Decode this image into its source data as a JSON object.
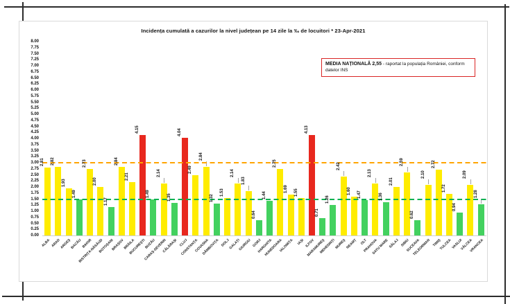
{
  "legend": {
    "title_bold": "MEDIA NAȚIONALĂ  2,55",
    "text": " - raportat la populația României, conform datelor INS"
  },
  "chart_data": {
    "type": "bar",
    "title": "Incidența cumulată a cazurilor la nivel județean pe 14 zile la ‰ de locuitori *   23-Apr-2021",
    "xlabel": "",
    "ylabel": "",
    "ylim": [
      0,
      8
    ],
    "ytick_step": 0.25,
    "grid": false,
    "legend_position": "top-right",
    "national_average": "2,55",
    "reference_lines": [
      {
        "name": "red-threshold",
        "value": 3.0,
        "color": "#ffa400",
        "style": "dashed"
      },
      {
        "name": "green-threshold",
        "value": 1.5,
        "color": "#00b050",
        "style": "dashed"
      }
    ],
    "palette": {
      "yellow": "#ffec00",
      "green": "#43d15f",
      "red": "#e8281e"
    },
    "bars": [
      {
        "name": "ALBA",
        "value": 2.81,
        "color": "yellow",
        "leader": false
      },
      {
        "name": "ARAD",
        "value": 2.82,
        "color": "yellow",
        "leader": false
      },
      {
        "name": "ARGEȘ",
        "value": 1.93,
        "color": "yellow",
        "leader": false
      },
      {
        "name": "BACĂU",
        "value": 1.49,
        "color": "green",
        "leader": false
      },
      {
        "name": "BIHOR",
        "value": 2.73,
        "color": "yellow",
        "leader": false
      },
      {
        "name": "BISTRIȚA-NĂSĂUD",
        "value": 2.0,
        "color": "yellow",
        "leader": false
      },
      {
        "name": "BOTOȘANI",
        "value": 1.17,
        "color": "green",
        "leader": false
      },
      {
        "name": "BRAȘOV",
        "value": 2.84,
        "color": "yellow",
        "leader": false
      },
      {
        "name": "BRĂILA",
        "value": 2.21,
        "color": "yellow",
        "leader": false
      },
      {
        "name": "BUCUREȘTI",
        "value": 4.15,
        "color": "red",
        "leader": false
      },
      {
        "name": "BUZĂU",
        "value": 1.49,
        "color": "green",
        "leader": false
      },
      {
        "name": "CARAȘ-SEVERIN",
        "value": 2.14,
        "color": "yellow",
        "leader": true
      },
      {
        "name": "CĂLĂRAȘI",
        "value": 1.35,
        "color": "green",
        "leader": false
      },
      {
        "name": "CLUJ",
        "value": 4.04,
        "color": "red",
        "leader": false
      },
      {
        "name": "CONSTANȚA",
        "value": 2.49,
        "color": "yellow",
        "leader": false
      },
      {
        "name": "COVASNA",
        "value": 2.84,
        "color": "yellow",
        "leader": true
      },
      {
        "name": "DÂMBOVIȚA",
        "value": 1.32,
        "color": "green",
        "leader": false
      },
      {
        "name": "DOLJ",
        "value": 1.53,
        "color": "yellow",
        "leader": false
      },
      {
        "name": "GALAȚI",
        "value": 2.14,
        "color": "yellow",
        "leader": true
      },
      {
        "name": "GIURGIU",
        "value": 1.83,
        "color": "yellow",
        "leader": true
      },
      {
        "name": "GORJ",
        "value": 0.64,
        "color": "green",
        "leader": false
      },
      {
        "name": "HARGHITA",
        "value": 1.44,
        "color": "green",
        "leader": false
      },
      {
        "name": "HUNEDOARA",
        "value": 2.75,
        "color": "yellow",
        "leader": false
      },
      {
        "name": "IALOMIȚA",
        "value": 1.69,
        "color": "yellow",
        "leader": false
      },
      {
        "name": "IAȘI",
        "value": 1.55,
        "color": "yellow",
        "leader": false
      },
      {
        "name": "ILFOV",
        "value": 4.13,
        "color": "red",
        "leader": false
      },
      {
        "name": "MARAMUREȘ",
        "value": 0.71,
        "color": "green",
        "leader": false
      },
      {
        "name": "MEHEDINȚI",
        "value": 1.26,
        "color": "green",
        "leader": false
      },
      {
        "name": "MUREȘ",
        "value": 2.42,
        "color": "yellow",
        "leader": true
      },
      {
        "name": "NEAMȚ",
        "value": 1.6,
        "color": "yellow",
        "leader": false
      },
      {
        "name": "OLT",
        "value": 1.47,
        "color": "green",
        "leader": false
      },
      {
        "name": "PRAHOVA",
        "value": 2.13,
        "color": "yellow",
        "leader": true
      },
      {
        "name": "SATU MARE",
        "value": 1.36,
        "color": "green",
        "leader": false
      },
      {
        "name": "SĂLAJ",
        "value": 2.01,
        "color": "yellow",
        "leader": false
      },
      {
        "name": "SIBIU",
        "value": 2.59,
        "color": "yellow",
        "leader": true
      },
      {
        "name": "SUCEAVA",
        "value": 0.62,
        "color": "green",
        "leader": false
      },
      {
        "name": "TELEORMAN",
        "value": 2.1,
        "color": "yellow",
        "leader": true
      },
      {
        "name": "TIMIȘ",
        "value": 2.72,
        "color": "yellow",
        "leader": false
      },
      {
        "name": "TULCEA",
        "value": 1.72,
        "color": "yellow",
        "leader": false
      },
      {
        "name": "VASLUI",
        "value": 0.94,
        "color": "green",
        "leader": false
      },
      {
        "name": "VÂLCEA",
        "value": 2.09,
        "color": "yellow",
        "leader": true
      },
      {
        "name": "VRANCEA",
        "value": 1.28,
        "color": "green",
        "leader": true
      }
    ]
  }
}
